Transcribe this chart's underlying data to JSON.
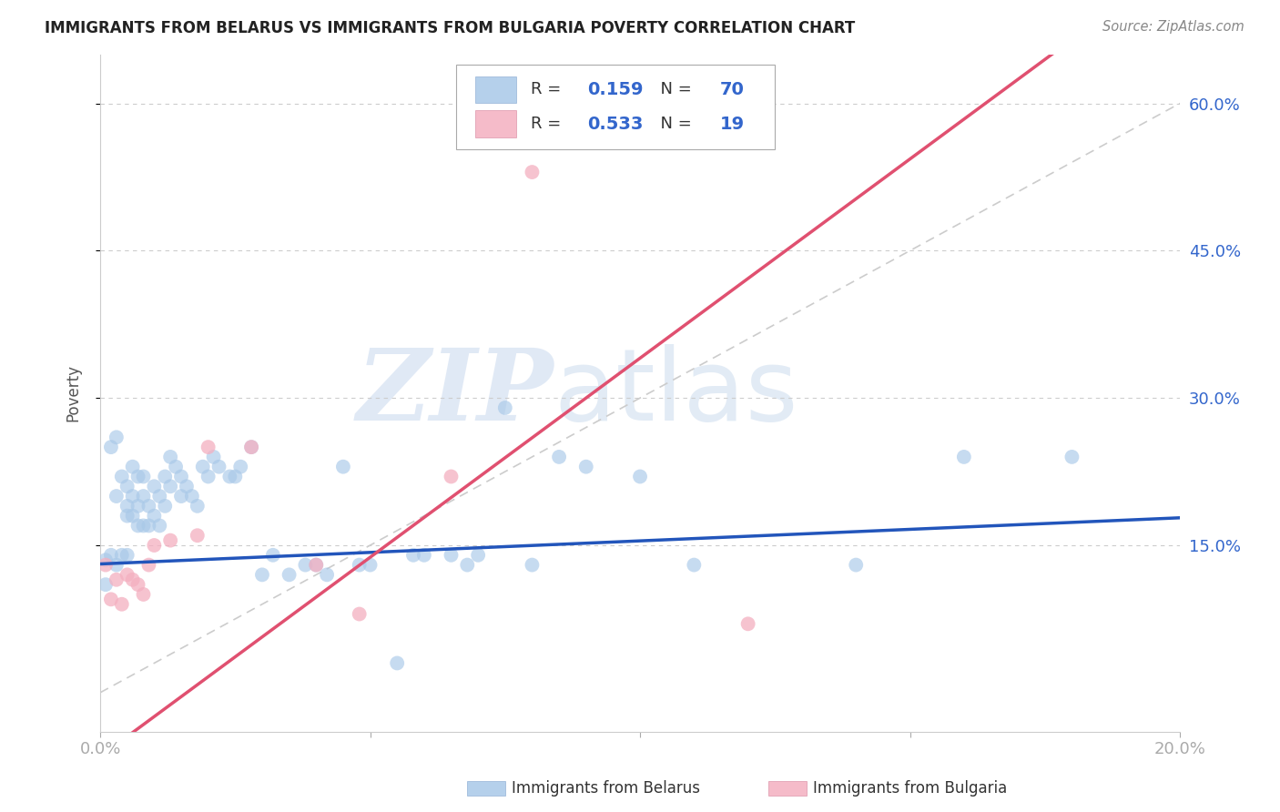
{
  "title": "IMMIGRANTS FROM BELARUS VS IMMIGRANTS FROM BULGARIA POVERTY CORRELATION CHART",
  "source": "Source: ZipAtlas.com",
  "ylabel": "Poverty",
  "watermark_zip": "ZIP",
  "watermark_atlas": "atlas",
  "background_color": "#ffffff",
  "plot_bg_color": "#ffffff",
  "grid_color": "#cccccc",
  "belarus_color": "#a8c8e8",
  "bulgaria_color": "#f4afc0",
  "belarus_line_color": "#2255bb",
  "bulgaria_line_color": "#e05070",
  "dashed_line_color": "#cccccc",
  "R_belarus": 0.159,
  "N_belarus": 70,
  "R_bulgaria": 0.533,
  "N_bulgaria": 19,
  "xlim": [
    0.0,
    0.2
  ],
  "ylim": [
    -0.04,
    0.65
  ],
  "yticks": [
    0.15,
    0.3,
    0.45,
    0.6
  ],
  "ytick_labels": [
    "15.0%",
    "30.0%",
    "45.0%",
    "60.0%"
  ],
  "xticks": [
    0.0,
    0.05,
    0.1,
    0.15,
    0.2
  ],
  "xtick_labels": [
    "0.0%",
    "",
    "",
    "",
    "20.0%"
  ],
  "belarus_x": [
    0.001,
    0.001,
    0.002,
    0.002,
    0.003,
    0.003,
    0.003,
    0.004,
    0.004,
    0.005,
    0.005,
    0.005,
    0.005,
    0.006,
    0.006,
    0.006,
    0.007,
    0.007,
    0.007,
    0.008,
    0.008,
    0.008,
    0.009,
    0.009,
    0.01,
    0.01,
    0.011,
    0.011,
    0.012,
    0.012,
    0.013,
    0.013,
    0.014,
    0.015,
    0.015,
    0.016,
    0.017,
    0.018,
    0.019,
    0.02,
    0.021,
    0.022,
    0.024,
    0.025,
    0.026,
    0.028,
    0.03,
    0.032,
    0.035,
    0.038,
    0.04,
    0.042,
    0.045,
    0.048,
    0.05,
    0.055,
    0.058,
    0.06,
    0.065,
    0.068,
    0.07,
    0.075,
    0.08,
    0.085,
    0.09,
    0.1,
    0.11,
    0.14,
    0.16,
    0.18
  ],
  "belarus_y": [
    0.135,
    0.11,
    0.25,
    0.14,
    0.26,
    0.13,
    0.2,
    0.22,
    0.14,
    0.21,
    0.19,
    0.18,
    0.14,
    0.23,
    0.2,
    0.18,
    0.22,
    0.19,
    0.17,
    0.22,
    0.2,
    0.17,
    0.19,
    0.17,
    0.21,
    0.18,
    0.2,
    0.17,
    0.22,
    0.19,
    0.24,
    0.21,
    0.23,
    0.22,
    0.2,
    0.21,
    0.2,
    0.19,
    0.23,
    0.22,
    0.24,
    0.23,
    0.22,
    0.22,
    0.23,
    0.25,
    0.12,
    0.14,
    0.12,
    0.13,
    0.13,
    0.12,
    0.23,
    0.13,
    0.13,
    0.03,
    0.14,
    0.14,
    0.14,
    0.13,
    0.14,
    0.29,
    0.13,
    0.24,
    0.23,
    0.22,
    0.13,
    0.13,
    0.24,
    0.24
  ],
  "bulgaria_x": [
    0.001,
    0.002,
    0.003,
    0.004,
    0.005,
    0.006,
    0.007,
    0.008,
    0.009,
    0.01,
    0.013,
    0.018,
    0.02,
    0.028,
    0.04,
    0.048,
    0.065,
    0.08,
    0.12
  ],
  "bulgaria_y": [
    0.13,
    0.095,
    0.115,
    0.09,
    0.12,
    0.115,
    0.11,
    0.1,
    0.13,
    0.15,
    0.155,
    0.16,
    0.25,
    0.25,
    0.13,
    0.08,
    0.22,
    0.53,
    0.07
  ],
  "legend_labels": [
    "Immigrants from Belarus",
    "Immigrants from Bulgaria"
  ],
  "legend_text_color": "#3366cc",
  "legend_r_color": "#333333",
  "title_fontsize": 12,
  "axis_tick_color": "#3366cc",
  "axis_tick_fontsize": 13
}
